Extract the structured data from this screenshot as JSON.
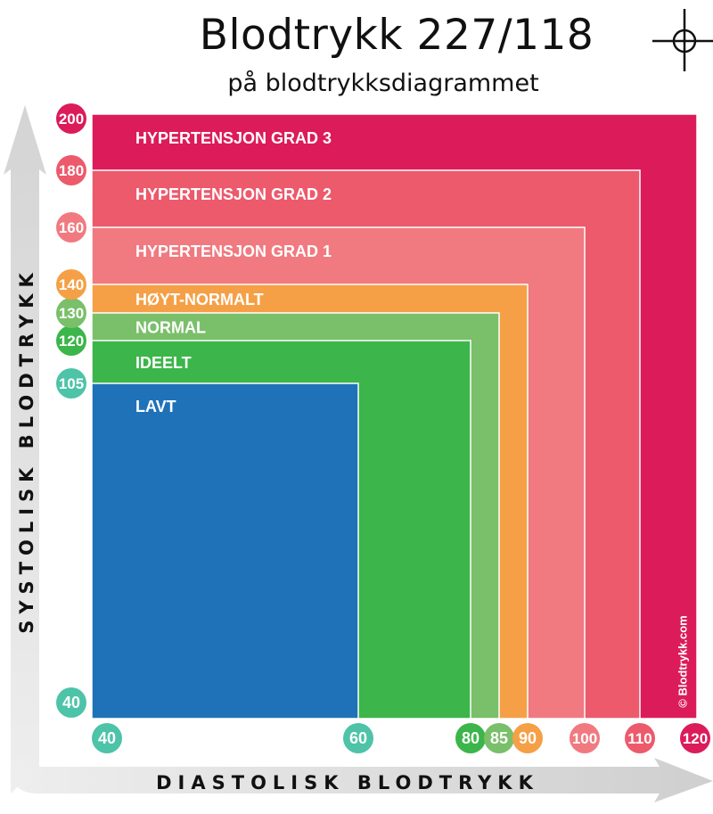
{
  "page": {
    "title": "Blodtrykk 227/118",
    "subtitle": "på blodtrykksdiagrammet",
    "copyright": "© Blodtrykk.com"
  },
  "chart_data": {
    "type": "nested-zones",
    "xlabel": "DIASTOLISK BLODTRYKK",
    "ylabel": "SYSTOLISK BLODTRYKK",
    "x_ticks": [
      40,
      60,
      80,
      85,
      90,
      100,
      110,
      120
    ],
    "y_ticks": [
      40,
      105,
      120,
      130,
      140,
      160,
      180,
      200
    ],
    "xlim": [
      40,
      120
    ],
    "ylim": [
      40,
      200
    ],
    "zones": [
      {
        "label": "HYPERTENSJON GRAD 3",
        "x_max": 120,
        "y_max": 200,
        "color": "#dc1b5a"
      },
      {
        "label": "HYPERTENSJON GRAD 2",
        "x_max": 110,
        "y_max": 180,
        "color": "#ec5a6c"
      },
      {
        "label": "HYPERTENSJON GRAD 1",
        "x_max": 100,
        "y_max": 160,
        "color": "#f07a80"
      },
      {
        "label": "HØYT-NORMALT",
        "x_max": 90,
        "y_max": 140,
        "color": "#f5a046"
      },
      {
        "label": "NORMAL",
        "x_max": 85,
        "y_max": 130,
        "color": "#7abf6a"
      },
      {
        "label": "IDEELT",
        "x_max": 80,
        "y_max": 120,
        "color": "#3cb54a"
      },
      {
        "label": "LAVT",
        "x_max": 60,
        "y_max": 105,
        "color": "#1f72b8"
      }
    ],
    "tick_colors": {
      "40": "#4dc3a8",
      "60": "#4dc3a8",
      "80": "#3cb54a",
      "85": "#7abf6a",
      "90": "#f5a046",
      "100": "#f07a80",
      "105": "#4dc3a8",
      "110": "#ec5a6c",
      "120": "#dc1b5a",
      "130": "#7abf6a",
      "140": "#f5a046",
      "160": "#f07a80",
      "180": "#ec5a6c",
      "200": "#dc1b5a",
      "y120": "#3cb54a",
      "x120": "#dc1b5a"
    }
  }
}
